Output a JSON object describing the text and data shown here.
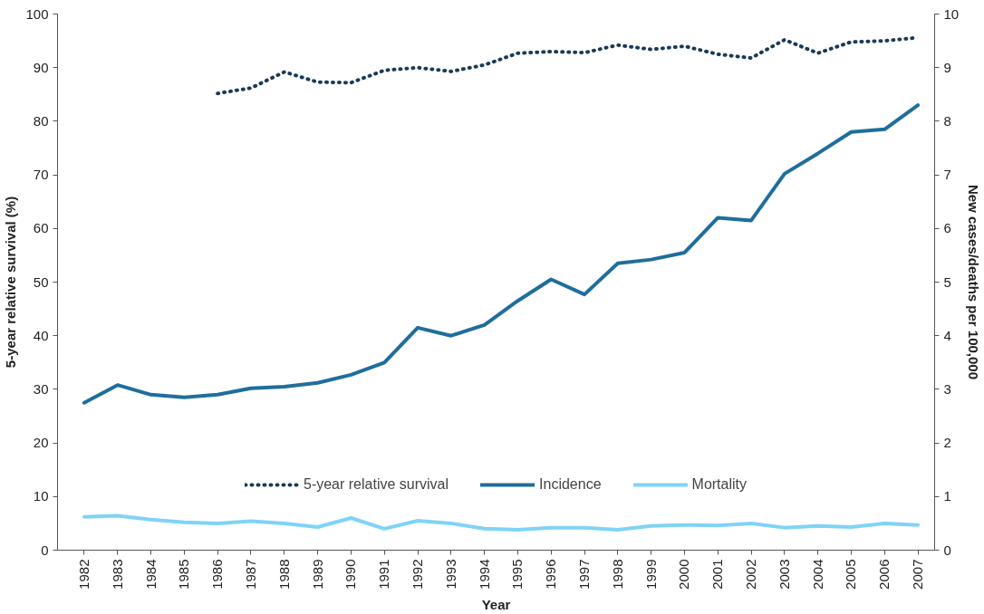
{
  "chart_data": {
    "type": "line",
    "xlabel": "Year",
    "ylabel": "5-year relative survival (%)",
    "y2label": "New cases/deaths per 100,000",
    "categories": [
      "1982",
      "1983",
      "1984",
      "1985",
      "1986",
      "1987",
      "1988",
      "1989",
      "1990",
      "1991",
      "1992",
      "1993",
      "1994",
      "1995",
      "1996",
      "1997",
      "1998",
      "1999",
      "2000",
      "2001",
      "2002",
      "2003",
      "2004",
      "2005",
      "2006",
      "2007"
    ],
    "series": [
      {
        "name": "5-year relative survival",
        "color": "#1b3a57",
        "line_style": "dotted",
        "values": [
          null,
          null,
          null,
          null,
          85.2,
          86.2,
          89.2,
          87.3,
          87.2,
          89.5,
          90.0,
          89.3,
          90.5,
          92.7,
          93.0,
          92.8,
          94.2,
          93.4,
          94.0,
          92.5,
          91.8,
          95.2,
          92.7,
          94.8,
          95.0,
          95.6
        ]
      },
      {
        "name": "Incidence",
        "color": "#1f6e9c",
        "line_style": "solid",
        "axis": "y2",
        "values": [
          2.75,
          3.08,
          2.9,
          2.85,
          2.9,
          3.02,
          3.05,
          3.12,
          3.27,
          3.5,
          4.15,
          4.0,
          4.2,
          4.65,
          5.05,
          4.77,
          5.35,
          5.42,
          5.55,
          6.2,
          6.15,
          7.02,
          7.4,
          7.8,
          7.85,
          8.3
        ]
      },
      {
        "name": "Mortality",
        "color": "#7fd3f7",
        "line_style": "solid",
        "axis": "y2",
        "values": [
          0.62,
          0.64,
          0.57,
          0.52,
          0.5,
          0.54,
          0.5,
          0.43,
          0.6,
          0.4,
          0.55,
          0.5,
          0.4,
          0.38,
          0.42,
          0.42,
          0.38,
          0.45,
          0.47,
          0.46,
          0.5,
          0.42,
          0.45,
          0.43,
          0.5,
          0.47
        ]
      }
    ],
    "ylim": [
      0,
      100
    ],
    "yticks": [
      0,
      10,
      20,
      30,
      40,
      50,
      60,
      70,
      80,
      90,
      100
    ],
    "y2lim": [
      0,
      10
    ],
    "y2ticks": [
      0,
      1,
      2,
      3,
      4,
      5,
      6,
      7,
      8,
      9,
      10
    ],
    "grid": false,
    "legend": "bottom",
    "marker": "none"
  }
}
